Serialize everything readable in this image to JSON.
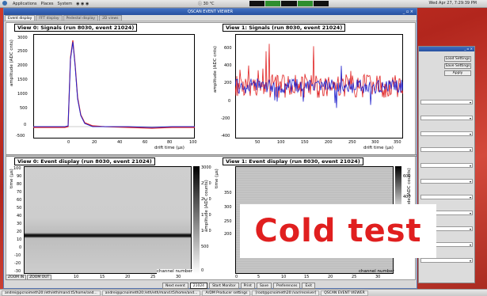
{
  "top_panel": {
    "menus": [
      "Applications",
      "Places",
      "System"
    ],
    "temperature": "ⓘ 30 °C",
    "clock": "Wed Apr 27,  7:29:39 PM"
  },
  "window": {
    "title": "QSCAN EVENT VIEWER",
    "controls": "_ ▫ ×",
    "tabs": [
      "Event display",
      "FFT display",
      "Pedestal display",
      "2D views"
    ]
  },
  "plots": {
    "v0sig": {
      "title": "View 0: Signals (run 8030, event 21024)",
      "ylabel": "amplitude (ADC cnts)",
      "xlabel": "drift time (μs)",
      "yticks": [
        "3000",
        "2500",
        "2000",
        "1500",
        "1000",
        "500",
        "0",
        "-500"
      ],
      "xticks": [
        "0",
        "20",
        "40",
        "60",
        "80",
        "100"
      ]
    },
    "v1sig": {
      "title": "View 1: Signals (run 8030, event 21024)",
      "ylabel": "amplitude (ADC cnts)",
      "xlabel": "drift time (μs)",
      "yticks": [
        "600",
        "400",
        "200",
        "0",
        "-200",
        "-400"
      ],
      "xticks": [
        "50",
        "100",
        "150",
        "200",
        "250",
        "300",
        "350"
      ]
    },
    "v0disp": {
      "title": "View 0: Event display (run 8030, event 21024)",
      "ylabel": "time (μs)",
      "xlabel": "channel number",
      "zlabel": "amplitude (ADC counts)",
      "yticks": [
        "100",
        "90",
        "80",
        "70",
        "60",
        "50",
        "40",
        "30",
        "20",
        "10",
        "0",
        "-10",
        "-20",
        "-30"
      ],
      "xticks": [
        "0",
        "5",
        "10",
        "15",
        "20",
        "25",
        "30"
      ],
      "zticks": [
        "3000",
        "2500",
        "2000",
        "1500",
        "1000",
        "500",
        "0"
      ]
    },
    "v1disp": {
      "title": "View 1: Event display (run 8030, event 21024)",
      "ylabel": "time (μs)",
      "xlabel": "channel number",
      "zlabel": "amplitude (ADC counts)",
      "yticks": [
        "350",
        "300",
        "250",
        "200"
      ],
      "xticks": [
        "0",
        "5",
        "10",
        "15",
        "20",
        "25",
        "30"
      ],
      "zticks": [
        "600",
        "400"
      ]
    }
  },
  "zoom": {
    "zoom_in": "ZOOM IN",
    "zoom_out": "ZOOM OUT"
  },
  "bottom_buttons": [
    "Next event",
    "21024",
    "Start Monitor",
    "Print",
    "Save",
    "Preferences",
    "Exit"
  ],
  "side_panel": {
    "load": "Load Settings",
    "save": "Save Settings",
    "apply": "Apply"
  },
  "taskbar": [
    "andrei@pcnoimeth20:/eth/eth/mand.t5/home/and...",
    "andrei@pcnoimeth20:/eth/eth/mand.t5/home/and...",
    "ArDM Producer settings",
    "[root@pcnoimeth20:/var/receiver]",
    "QSCAN EVENT VIEWER"
  ],
  "overlay": {
    "text": "Cold test"
  },
  "colors": {
    "signal_blue": "#2222cc",
    "signal_red": "#e02020",
    "overlay_red": "#e01f1f"
  }
}
